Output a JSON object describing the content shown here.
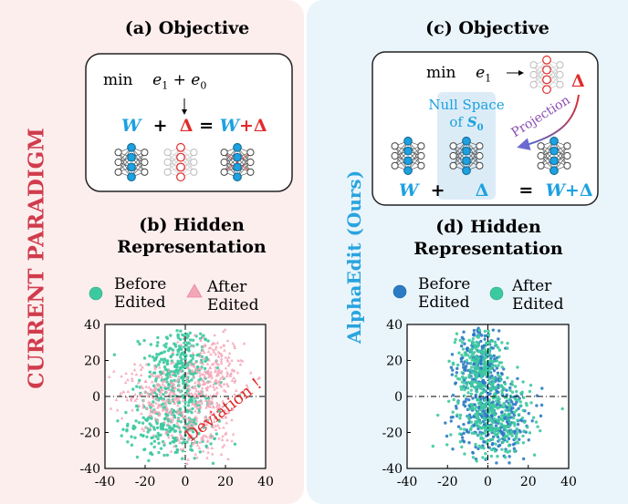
{
  "colors": {
    "blue": "#1da1e0",
    "red": "#e02b2b",
    "teal": "#3dc9a0",
    "pink": "#f4a6b8",
    "dark_blue": "#2b7bc4",
    "gray": "#b4b4b4"
  },
  "left": {
    "side_title": "CURRENT PARADIGM",
    "objective_title": "(a) Objective",
    "min_label": "min",
    "e1": "e",
    "e1_sub": "1",
    "e0": "e",
    "e0_sub": "0",
    "plus": "+",
    "eq_W": "W",
    "eq_plus": "+",
    "eq_delta": "Δ",
    "eq_equals": "=",
    "eq_rhs_W": "W",
    "eq_rhs_plus": "+",
    "eq_rhs_delta": "Δ",
    "hidden_title_line1": "(b) Hidden",
    "hidden_title_line2": "Representation",
    "legend_before_1": "Before",
    "legend_before_2": "Edited",
    "legend_after_1": "After",
    "legend_after_2": "Edited",
    "annotation": "Deviation !"
  },
  "right": {
    "side_title": "AlphaEdit (Ours)",
    "objective_title": "(c) Objective",
    "min_label": "min",
    "e1": "e",
    "e1_sub": "1",
    "delta": "Δ",
    "projection_label": "Projection",
    "null_space_1": "Null Space",
    "null_space_2": "of",
    "null_space_S": "S",
    "null_space_sub": "0",
    "eq_W": "W",
    "eq_plus": "+",
    "eq_delta": "Δ",
    "eq_equals": "=",
    "eq_rhs_W": "W",
    "eq_rhs_plus": "+",
    "eq_rhs_delta": "Δ",
    "hidden_title_line1": "(d) Hidden",
    "hidden_title_line2": "Representation",
    "legend_before_1": "Before",
    "legend_before_2": "Edited",
    "legend_after_1": "After",
    "legend_after_2": "Edited"
  },
  "chart_data": [
    {
      "type": "scatter",
      "title": "(b) Hidden Representation",
      "xlim": [
        -40,
        40
      ],
      "ylim": [
        -40,
        40
      ],
      "xticks": [
        -40,
        -20,
        0,
        20,
        40
      ],
      "yticks": [
        40,
        20,
        0,
        -20,
        -40
      ],
      "xtick_labels": [
        "-40",
        "-20",
        "0",
        "20",
        "40"
      ],
      "ytick_labels": [
        "40",
        "20",
        "0",
        "-20",
        "-40"
      ],
      "series": [
        {
          "name": "Before Edited",
          "marker": "circle",
          "color": "#3dc9a0",
          "clusters": [
            {
              "cx": -3,
              "cy": 18,
              "sx": 8,
              "sy": 11,
              "n": 260
            },
            {
              "cx": -6,
              "cy": -14,
              "sx": 11,
              "sy": 11,
              "n": 300
            }
          ]
        },
        {
          "name": "After Edited",
          "marker": "triangle",
          "color": "#f4a6b8",
          "clusters": [
            {
              "cx": 13,
              "cy": 12,
              "sx": 8,
              "sy": 11,
              "n": 240
            },
            {
              "cx": -15,
              "cy": 2,
              "sx": 9,
              "sy": 9,
              "n": 180
            },
            {
              "cx": 7,
              "cy": -16,
              "sx": 10,
              "sy": 10,
              "n": 160
            }
          ]
        }
      ]
    },
    {
      "type": "scatter",
      "title": "(d) Hidden Representation",
      "xlim": [
        -40,
        40
      ],
      "ylim": [
        -40,
        40
      ],
      "xticks": [
        -40,
        -20,
        0,
        20,
        40
      ],
      "yticks": [
        40,
        20,
        0,
        -20,
        -40
      ],
      "xtick_labels": [
        "-40",
        "-20",
        "0",
        "20",
        "40"
      ],
      "ytick_labels": [
        "40",
        "20",
        "0",
        "-20",
        "-40"
      ],
      "series": [
        {
          "name": "Before Edited",
          "marker": "circle",
          "color": "#2b7bc4",
          "clusters": [
            {
              "cx": -4,
              "cy": 19,
              "sx": 6,
              "sy": 10,
              "n": 220
            },
            {
              "cx": 3,
              "cy": -12,
              "sx": 9,
              "sy": 11,
              "n": 320
            }
          ]
        },
        {
          "name": "After Edited",
          "marker": "circle",
          "color": "#3dc9a0",
          "clusters": [
            {
              "cx": -4,
              "cy": 19,
              "sx": 6,
              "sy": 10,
              "n": 200
            },
            {
              "cx": 3,
              "cy": -12,
              "sx": 9,
              "sy": 11,
              "n": 300
            }
          ]
        }
      ]
    }
  ]
}
